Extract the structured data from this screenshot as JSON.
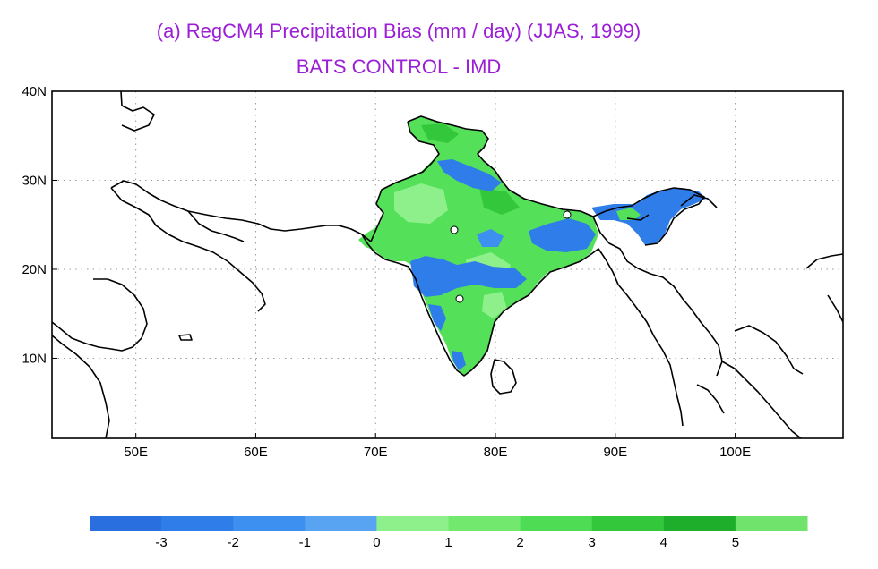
{
  "title": "(a) RegCM4 Precipitation Bias (mm / day)  (JJAS, 1999)",
  "subtitle": "BATS CONTROL - IMD",
  "map": {
    "lon_range": [
      43,
      109
    ],
    "lat_range": [
      1,
      40
    ],
    "lon_ticks": [
      {
        "value": 50,
        "label": "50E"
      },
      {
        "value": 60,
        "label": "60E"
      },
      {
        "value": 70,
        "label": "70E"
      },
      {
        "value": 80,
        "label": "80E"
      },
      {
        "value": 90,
        "label": "90E"
      },
      {
        "value": 100,
        "label": "100E"
      }
    ],
    "lat_ticks": [
      {
        "value": 40,
        "label": "40N"
      },
      {
        "value": 30,
        "label": "30N"
      },
      {
        "value": 20,
        "label": "20N"
      },
      {
        "value": 10,
        "label": "10N"
      }
    ],
    "grid": "dotted"
  },
  "colorbar": {
    "colors": [
      "#2a6fe0",
      "#2f7de8",
      "#3d8ff0",
      "#58a4f2",
      "#8ef08a",
      "#72e86e",
      "#4fdc55",
      "#33c83c",
      "#1fae2b",
      "#6fe36b"
    ],
    "labels": [
      "-3",
      "-2",
      "-1",
      "0",
      "1",
      "2",
      "3",
      "4",
      "5"
    ]
  },
  "colors": {
    "title": "#9b1fd6",
    "coast": "#000000",
    "land_green": "#55e05a",
    "land_green_light": "#8ef08a",
    "land_blue": "#2f7de8"
  }
}
